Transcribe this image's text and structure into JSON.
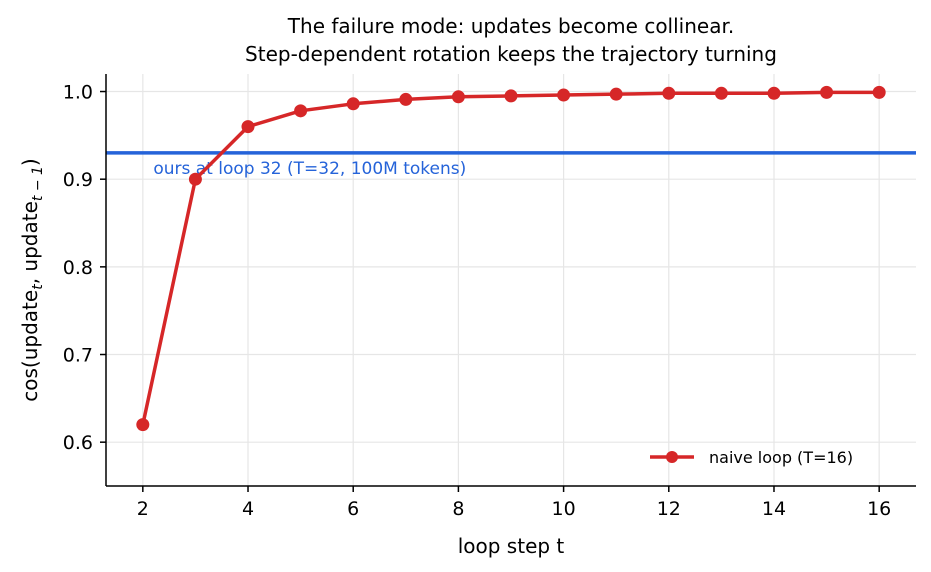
{
  "chart_data": {
    "type": "line",
    "title_line1": "The failure mode: updates become collinear.",
    "title_line2": "Step-dependent rotation keeps the trajectory turning",
    "xlabel": "loop step t",
    "ylabel": "cos(update",
    "ylabel_sub1": "t",
    "ylabel_mid": ", update",
    "ylabel_sub2": "t − 1",
    "ylabel_end": ")",
    "xlim": [
      1.3,
      16.7
    ],
    "ylim": [
      0.55,
      1.02
    ],
    "xticks": [
      2,
      4,
      6,
      8,
      10,
      12,
      14,
      16
    ],
    "yticks": [
      0.6,
      0.7,
      0.8,
      0.9,
      1.0
    ],
    "ytick_labels": [
      "0.6",
      "0.7",
      "0.8",
      "0.9",
      "1.0"
    ],
    "grid": true,
    "series": [
      {
        "name": "naive loop (T=16)",
        "color": "#d62728",
        "x": [
          2,
          3,
          4,
          5,
          6,
          7,
          8,
          9,
          10,
          11,
          12,
          13,
          14,
          15,
          16
        ],
        "y": [
          0.62,
          0.9,
          0.96,
          0.978,
          0.986,
          0.991,
          0.994,
          0.995,
          0.996,
          0.997,
          0.998,
          0.998,
          0.998,
          0.999,
          0.999
        ]
      }
    ],
    "reference_line": {
      "y": 0.93,
      "color": "#2563d9",
      "label": "ours at loop 32 (T=32, 100M tokens)"
    },
    "legend_position": "lower-right"
  }
}
